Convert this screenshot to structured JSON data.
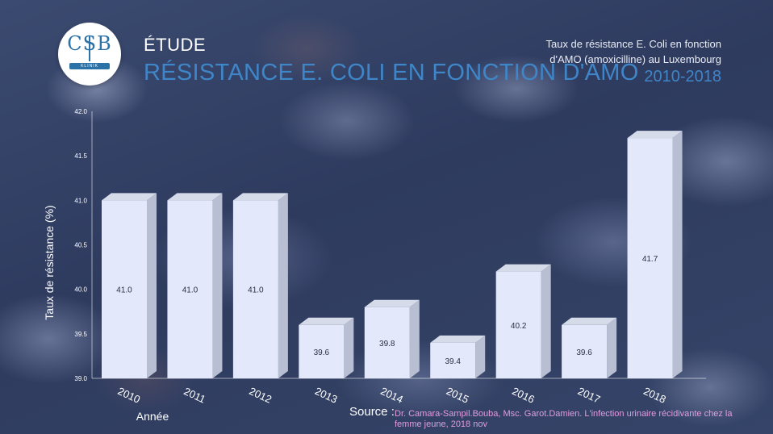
{
  "header": {
    "kicker": "ÉTUDE",
    "title": "RÉSISTANCE E. COLI EN FONCTION D'AMO",
    "description": "Taux de résistance E. Coli en fonction d'AMO (amoxicilline) au Luxembourg",
    "period": "2010-2018"
  },
  "logo": {
    "letters": "CSB",
    "band_text": "KLINIK"
  },
  "source": {
    "label": "Source :",
    "reference": "Dr. Camara-Sampil.Bouba, Msc. Garot.Damien. L'infection urinaire récidivante chez la femme jeune, 2018 nov"
  },
  "colors": {
    "accent": "#3f86c8",
    "bar_face": "#e3e9fb",
    "bar_side": "#b9bfd2",
    "bar_top": "#d6dbea",
    "source_ref": "#e39be0"
  },
  "chart_data": {
    "type": "bar",
    "categories": [
      "2010",
      "2011",
      "2012",
      "2013",
      "2014",
      "2015",
      "2016",
      "2017",
      "2018"
    ],
    "values": [
      41.0,
      41.0,
      41.0,
      39.6,
      39.8,
      39.4,
      40.2,
      39.6,
      41.7
    ],
    "value_labels": [
      "41.0",
      "41.0",
      "41.0",
      "39.6",
      "39.8",
      "39.4",
      "40.2",
      "39.6",
      "41.7"
    ],
    "yticks": [
      "39.0",
      "39.5",
      "40.0",
      "40.5",
      "41.0",
      "41.5",
      "42.0"
    ],
    "ylim": [
      39.0,
      42.0
    ],
    "ylabel": "Taux de résistance (%)",
    "xlabel": "Année",
    "grid": false,
    "bars_3d": true
  }
}
